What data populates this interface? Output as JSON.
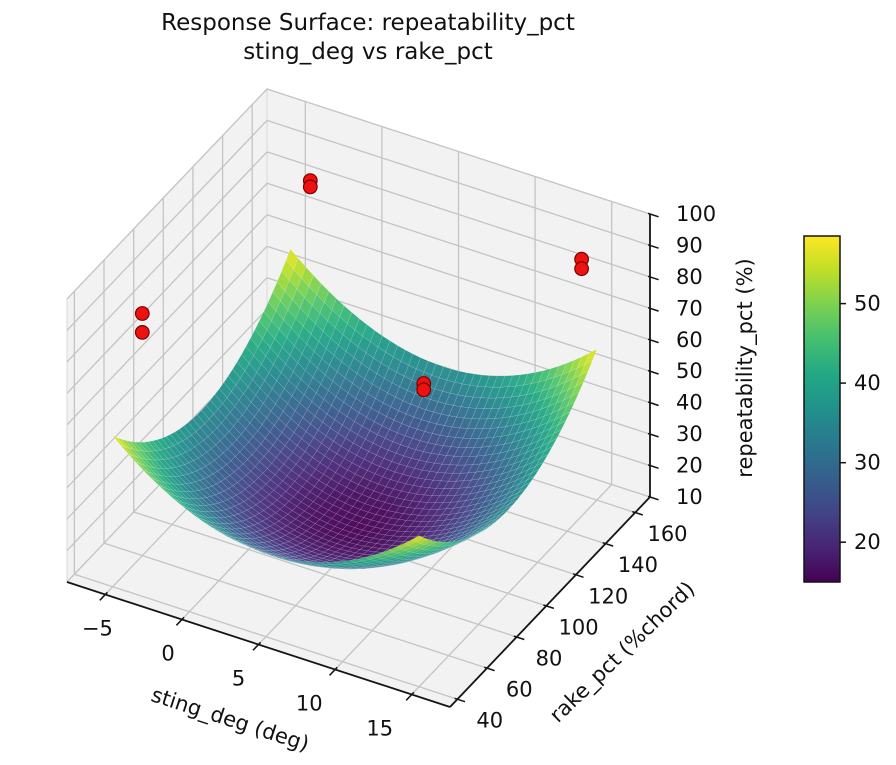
{
  "title": {
    "line1": "Response Surface: repeatability_pct",
    "line2": "sting_deg vs rake_pct"
  },
  "chart_data": {
    "type": "surface",
    "title": "Response Surface: repeatability_pct\nsting_deg vs rake_pct",
    "xlabel": "sting_deg (deg)",
    "ylabel": "rake_pct (%chord)",
    "zlabel": "repeatability_pct (%)",
    "x_ticks": [
      -5,
      0,
      5,
      10,
      15
    ],
    "y_ticks": [
      40,
      60,
      80,
      100,
      120,
      140,
      160
    ],
    "z_ticks": [
      10,
      20,
      30,
      40,
      50,
      60,
      70,
      80,
      90,
      100
    ],
    "xlim": [
      -7.5,
      17.5
    ],
    "ylim": [
      35,
      170
    ],
    "zlim": [
      10,
      100
    ],
    "grid": true,
    "colormap": "viridis",
    "color_scale": {
      "vmin": 15,
      "vmax": 58.5
    },
    "colorbar_ticks": [
      20,
      30,
      40,
      50
    ],
    "surface": {
      "x_domain": [
        -5,
        15
      ],
      "y_domain": [
        40,
        160
      ],
      "model": "z = 15 + 21.5*((sting_deg-5)/10)^2 + 21.5*((rake_pct-100)/60)^2",
      "min_point": {
        "sting_deg": 5,
        "rake_pct": 100,
        "z": 15
      },
      "corner_z": 58,
      "grid_n": 40
    },
    "scatter": {
      "color": "#ee1111",
      "edge_color": "#7a0000",
      "points": [
        {
          "sting_deg": -1,
          "rake_pct": 132,
          "repeatability_pct": 100
        },
        {
          "sting_deg": -1,
          "rake_pct": 132,
          "repeatability_pct": 98
        },
        {
          "sting_deg": -5,
          "rake_pct": 60,
          "repeatability_pct": 87
        },
        {
          "sting_deg": -5,
          "rake_pct": 60,
          "repeatability_pct": 81
        },
        {
          "sting_deg": 14,
          "rake_pct": 160,
          "repeatability_pct": 85
        },
        {
          "sting_deg": 14,
          "rake_pct": 160,
          "repeatability_pct": 82
        },
        {
          "sting_deg": 9.5,
          "rake_pct": 100,
          "repeatability_pct": 68
        },
        {
          "sting_deg": 9.5,
          "rake_pct": 100,
          "repeatability_pct": 66
        }
      ]
    },
    "viridis_stops": [
      "#440154",
      "#482475",
      "#414487",
      "#355f8d",
      "#2a788e",
      "#21918c",
      "#22a884",
      "#44bf70",
      "#7ad151",
      "#bddf26",
      "#fde725"
    ],
    "style": {
      "pane_color": "#f2f2f2",
      "pane_edge_color": "#d9d9d9",
      "grid_color": "#c4c4c4",
      "spine_color": "#141414",
      "text_color": "#111111",
      "background": "#ffffff"
    }
  }
}
